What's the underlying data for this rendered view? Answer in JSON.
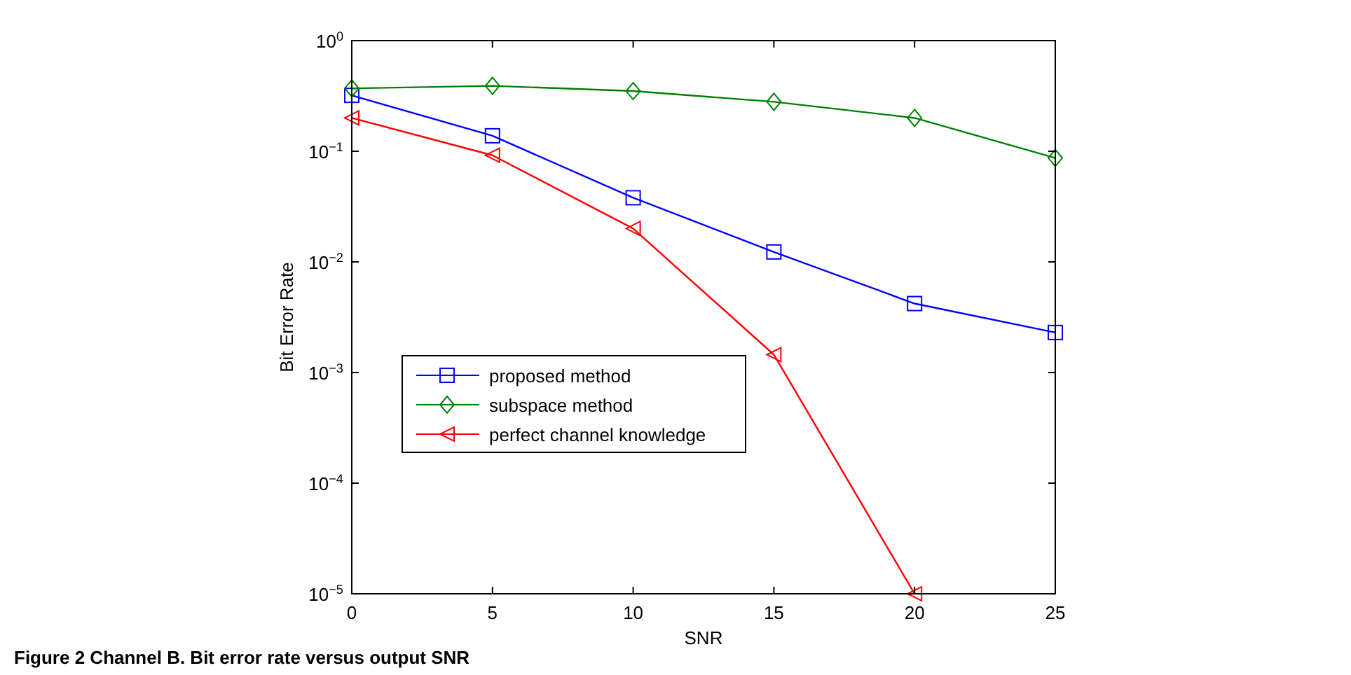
{
  "chart_data": {
    "type": "line",
    "xlabel": "SNR",
    "ylabel": "Bit Error Rate",
    "log": "y",
    "x": [
      0,
      5,
      10,
      15,
      20,
      25
    ],
    "xlim": [
      0,
      25
    ],
    "xticks": [
      0,
      5,
      10,
      15,
      20,
      25
    ],
    "ylim": [
      1e-05,
      1
    ],
    "yticks": [
      {
        "value": 1e-05,
        "label": "10$^{−5}$"
      },
      {
        "value": 0.0001,
        "label": "10$^{−4}$"
      },
      {
        "value": 0.001,
        "label": "10$^{−3}$"
      },
      {
        "value": 0.01,
        "label": "10$^{−2}$"
      },
      {
        "value": 0.1,
        "label": "10$^{−1}$"
      },
      {
        "value": 1,
        "label": "10$^{0}$"
      }
    ],
    "grid": false,
    "legend": "bottom left",
    "line_style": "solid",
    "series": [
      {
        "name": "proposed method",
        "color": "#0000ff",
        "marker": "square",
        "values": [
          0.32,
          0.138,
          0.038,
          0.0123,
          0.0042,
          0.0023
        ]
      },
      {
        "name": "subspace method",
        "color": "#008000",
        "marker": "diamond",
        "values": [
          0.37,
          0.39,
          0.35,
          0.28,
          0.2,
          0.087
        ]
      },
      {
        "name": "perfect channel knowledge",
        "color": "#ff0000",
        "marker": "triangle",
        "values": [
          0.2,
          0.092,
          0.02,
          0.00145,
          1e-05,
          null
        ]
      }
    ],
    "annotations": [
      "Figure 2 Channel B. Bit error rate versus output SNR"
    ]
  }
}
